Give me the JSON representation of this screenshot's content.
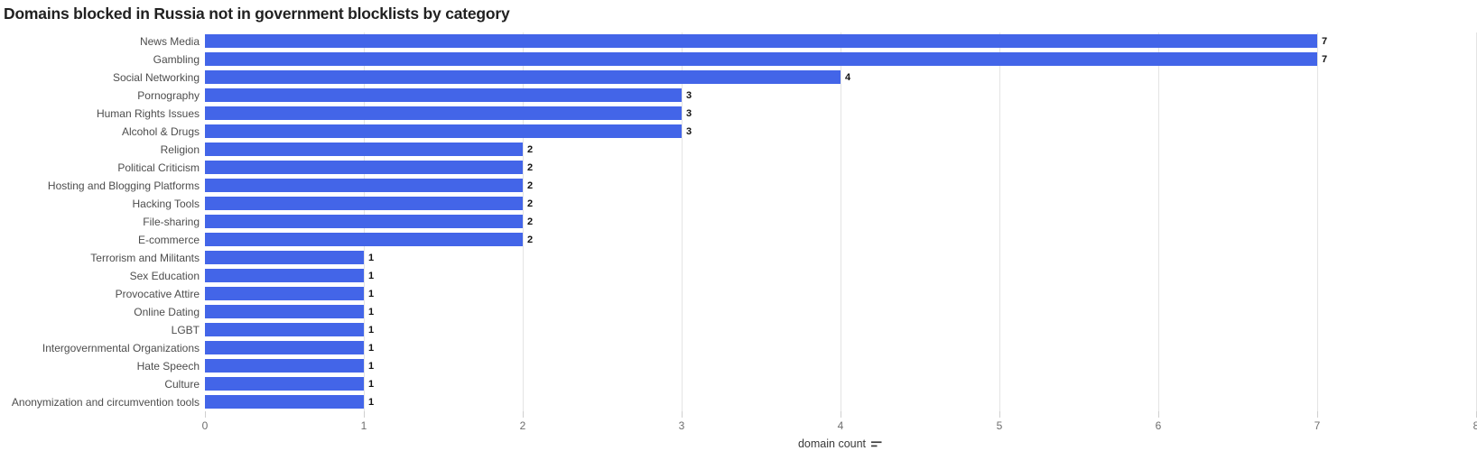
{
  "title": "Domains blocked in Russia not in government blocklists by category",
  "chart_data": {
    "type": "bar",
    "orientation": "horizontal",
    "title": "Domains blocked in Russia not in government blocklists by category",
    "categories": [
      "News Media",
      "Gambling",
      "Social Networking",
      "Pornography",
      "Human Rights Issues",
      "Alcohol & Drugs",
      "Religion",
      "Political Criticism",
      "Hosting and Blogging Platforms",
      "Hacking Tools",
      "File-sharing",
      "E-commerce",
      "Terrorism and Militants",
      "Sex Education",
      "Provocative Attire",
      "Online Dating",
      "LGBT",
      "Intergovernmental Organizations",
      "Hate Speech",
      "Culture",
      "Anonymization and circumvention tools"
    ],
    "values": [
      7,
      7,
      4,
      3,
      3,
      3,
      2,
      2,
      2,
      2,
      2,
      2,
      1,
      1,
      1,
      1,
      1,
      1,
      1,
      1,
      1
    ],
    "value_labels": [
      7,
      7,
      4,
      3,
      3,
      3,
      2,
      2,
      2,
      2,
      2,
      2,
      1,
      1,
      1,
      1,
      1,
      1,
      1,
      1,
      1
    ],
    "xlabel": "domain count",
    "ylabel": "",
    "xlim": [
      0,
      8
    ],
    "xticks": [
      0,
      1,
      2,
      3,
      4,
      5,
      6,
      7,
      8
    ],
    "grid": true,
    "legend": false,
    "bar_color": "#4365e8",
    "sort_icon": "sort-descending-icon"
  }
}
